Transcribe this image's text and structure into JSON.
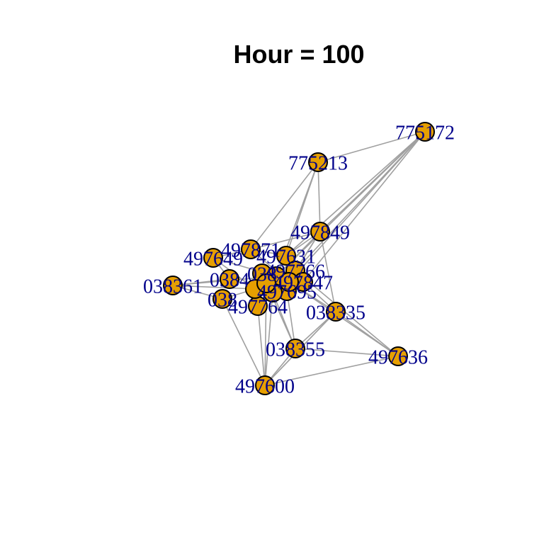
{
  "title": "Hour = 100",
  "colors": {
    "node_fill": "#e69f00",
    "node_stroke": "#000000",
    "edge": "#a0a0a0",
    "label": "#00008b"
  },
  "nodes": [
    {
      "id": "775172",
      "label": "775172"
    },
    {
      "id": "775213",
      "label": "775213"
    },
    {
      "id": "497849",
      "label": "497849"
    },
    {
      "id": "497871",
      "label": "497871"
    },
    {
      "id": "497649",
      "label": "497649"
    },
    {
      "id": "497631",
      "label": "497631"
    },
    {
      "id": "038361",
      "label": "038361"
    },
    {
      "id": "0384",
      "label": "0384"
    },
    {
      "id": "038",
      "label": "038"
    },
    {
      "id": "038x",
      "label": "038"
    },
    {
      "id": "497766",
      "label": "497766"
    },
    {
      "id": "497847",
      "label": "497847"
    },
    {
      "id": "497695",
      "label": "497695"
    },
    {
      "id": "497764",
      "label": "497764"
    },
    {
      "id": "c1",
      "label": ""
    },
    {
      "id": "c2",
      "label": ""
    },
    {
      "id": "c3",
      "label": ""
    },
    {
      "id": "c4",
      "label": ""
    },
    {
      "id": "c5",
      "label": ""
    },
    {
      "id": "038335",
      "label": "038335"
    },
    {
      "id": "038355",
      "label": "038355"
    },
    {
      "id": "497636",
      "label": "497636"
    },
    {
      "id": "497600",
      "label": "497600"
    }
  ],
  "edges": [
    [
      "775172",
      "775213"
    ],
    [
      "775172",
      "497849"
    ],
    [
      "775172",
      "497631"
    ],
    [
      "775172",
      "c1"
    ],
    [
      "775172",
      "c2"
    ],
    [
      "775172",
      "497766"
    ],
    [
      "775172",
      "497847"
    ],
    [
      "775213",
      "497849"
    ],
    [
      "775213",
      "497871"
    ],
    [
      "775213",
      "c1"
    ],
    [
      "775213",
      "497631"
    ],
    [
      "497849",
      "497871"
    ],
    [
      "497849",
      "497631"
    ],
    [
      "497849",
      "c1"
    ],
    [
      "497849",
      "c2"
    ],
    [
      "497849",
      "038335"
    ],
    [
      "497849",
      "497766"
    ],
    [
      "497649",
      "497871"
    ],
    [
      "497649",
      "c1"
    ],
    [
      "497649",
      "0384"
    ],
    [
      "497649",
      "c3"
    ],
    [
      "038361",
      "0384"
    ],
    [
      "038361",
      "c1"
    ],
    [
      "038361",
      "c3"
    ],
    [
      "038361",
      "038"
    ],
    [
      "497871",
      "497631"
    ],
    [
      "497871",
      "c2"
    ],
    [
      "497631",
      "c1"
    ],
    [
      "038335",
      "497636"
    ],
    [
      "038335",
      "038355"
    ],
    [
      "038335",
      "c2"
    ],
    [
      "038335",
      "497847"
    ],
    [
      "038335",
      "497600"
    ],
    [
      "038355",
      "497636"
    ],
    [
      "038355",
      "497600"
    ],
    [
      "038355",
      "c4"
    ],
    [
      "038355",
      "c5"
    ],
    [
      "038355",
      "497695"
    ],
    [
      "497636",
      "497600"
    ],
    [
      "497636",
      "c2"
    ],
    [
      "497636",
      "497766"
    ],
    [
      "497600",
      "497764"
    ],
    [
      "497600",
      "038"
    ],
    [
      "497600",
      "c4"
    ],
    [
      "497600",
      "c5"
    ],
    [
      "497600",
      "038335"
    ],
    [
      "497764",
      "c3"
    ],
    [
      "038",
      "c3"
    ],
    [
      "0384",
      "c4"
    ]
  ]
}
